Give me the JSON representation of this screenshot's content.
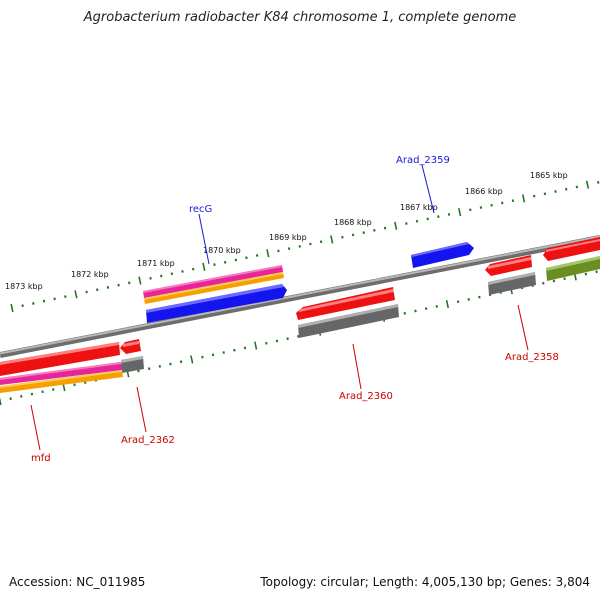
{
  "title": "Agrobacterium radiobacter K84 chromosome 1, complete genome",
  "footer": {
    "accession": "Accession: NC_011985",
    "summary": "Topology: circular; Length: 4,005,130 bp; Genes: 3,804"
  },
  "colors": {
    "backbone": "#808080",
    "tick": "#1f7a1f",
    "forward_label": "#1a1adb",
    "reverse_label": "#cc0000",
    "red": "#ee1111",
    "magenta": "#e8249a",
    "orange": "#f5a000",
    "blue": "#1414ee",
    "gray": "#666666",
    "olive": "#6b8e23"
  },
  "ticks": [
    "1865 kbp",
    "1866 kbp",
    "1867 kbp",
    "1868 kbp",
    "1869 kbp",
    "1870 kbp",
    "1871 kbp",
    "1872 kbp",
    "1873 kbp"
  ],
  "gene_labels": {
    "recG": "recG",
    "arad_2359": "Arad_2359",
    "arad_2358": "Arad_2358",
    "arad_2360": "Arad_2360",
    "arad_2362": "Arad_2362",
    "mfd": "mfd"
  }
}
